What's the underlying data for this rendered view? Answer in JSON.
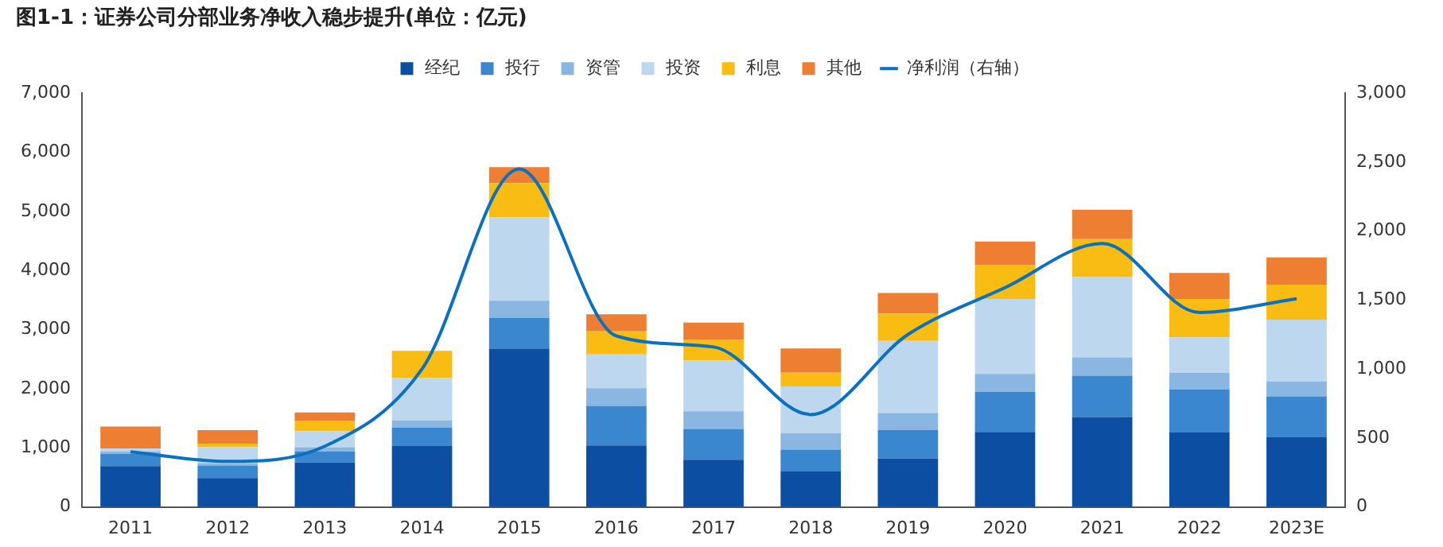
{
  "chart_data": {
    "type": "bar",
    "title": "图1-1：证券公司分部业务净收入稳步提升(单位：亿元)",
    "stacked": true,
    "legend": "top",
    "grid": false,
    "categories": [
      "2011",
      "2012",
      "2013",
      "2014",
      "2015",
      "2016",
      "2017",
      "2018",
      "2019",
      "2020",
      "2021",
      "2022",
      "2023E"
    ],
    "ylim": [
      0,
      7000
    ],
    "yticks": [
      {
        "value": 0,
        "label": "0"
      },
      {
        "value": 1000,
        "label": "1,000"
      },
      {
        "value": 2000,
        "label": "2,000"
      },
      {
        "value": 3000,
        "label": "3,000"
      },
      {
        "value": 4000,
        "label": "4,000"
      },
      {
        "value": 5000,
        "label": "5,000"
      },
      {
        "value": 6000,
        "label": "6,000"
      },
      {
        "value": 7000,
        "label": "7,000"
      }
    ],
    "y2lim": [
      0,
      3000
    ],
    "y2ticks": [
      {
        "value": 0,
        "label": "0"
      },
      {
        "value": 500,
        "label": "500"
      },
      {
        "value": 1000,
        "label": "1,000"
      },
      {
        "value": 1500,
        "label": "1,500"
      },
      {
        "value": 2000,
        "label": "2,000"
      },
      {
        "value": 2500,
        "label": "2,500"
      },
      {
        "value": 3000,
        "label": "3,000"
      }
    ],
    "series": [
      {
        "name": "经纪",
        "color": "#0b4ea2",
        "values": [
          690,
          490,
          750,
          1030,
          2670,
          1040,
          800,
          600,
          820,
          1270,
          1520,
          1260,
          1180
        ]
      },
      {
        "name": "投行",
        "color": "#3a87d0",
        "values": [
          210,
          210,
          190,
          310,
          530,
          670,
          520,
          370,
          480,
          680,
          700,
          730,
          690
        ]
      },
      {
        "name": "资管",
        "color": "#8ab6e2",
        "values": [
          40,
          40,
          70,
          120,
          290,
          300,
          300,
          280,
          290,
          300,
          310,
          280,
          250
        ]
      },
      {
        "name": "投资",
        "color": "#bdd7ee",
        "values": [
          50,
          270,
          270,
          720,
          1410,
          570,
          860,
          790,
          1220,
          1270,
          1360,
          600,
          1050
        ]
      },
      {
        "name": "利息",
        "color": "#f8bc12",
        "values": [
          0,
          60,
          180,
          460,
          580,
          390,
          350,
          230,
          460,
          570,
          640,
          650,
          590
        ]
      },
      {
        "name": "其他",
        "color": "#ee7e32",
        "values": [
          370,
          230,
          140,
          null,
          270,
          290,
          290,
          410,
          350,
          400,
          500,
          440,
          460
        ]
      },
      {
        "name": "净利润（右轴）",
        "type": "line",
        "axis": "y2",
        "color": "#0a70c0",
        "marker": "none",
        "line_style": "solid",
        "values": [
          400,
          330,
          440,
          1000,
          2450,
          1240,
          1160,
          670,
          1250,
          1590,
          1910,
          1410,
          1510
        ]
      }
    ]
  }
}
